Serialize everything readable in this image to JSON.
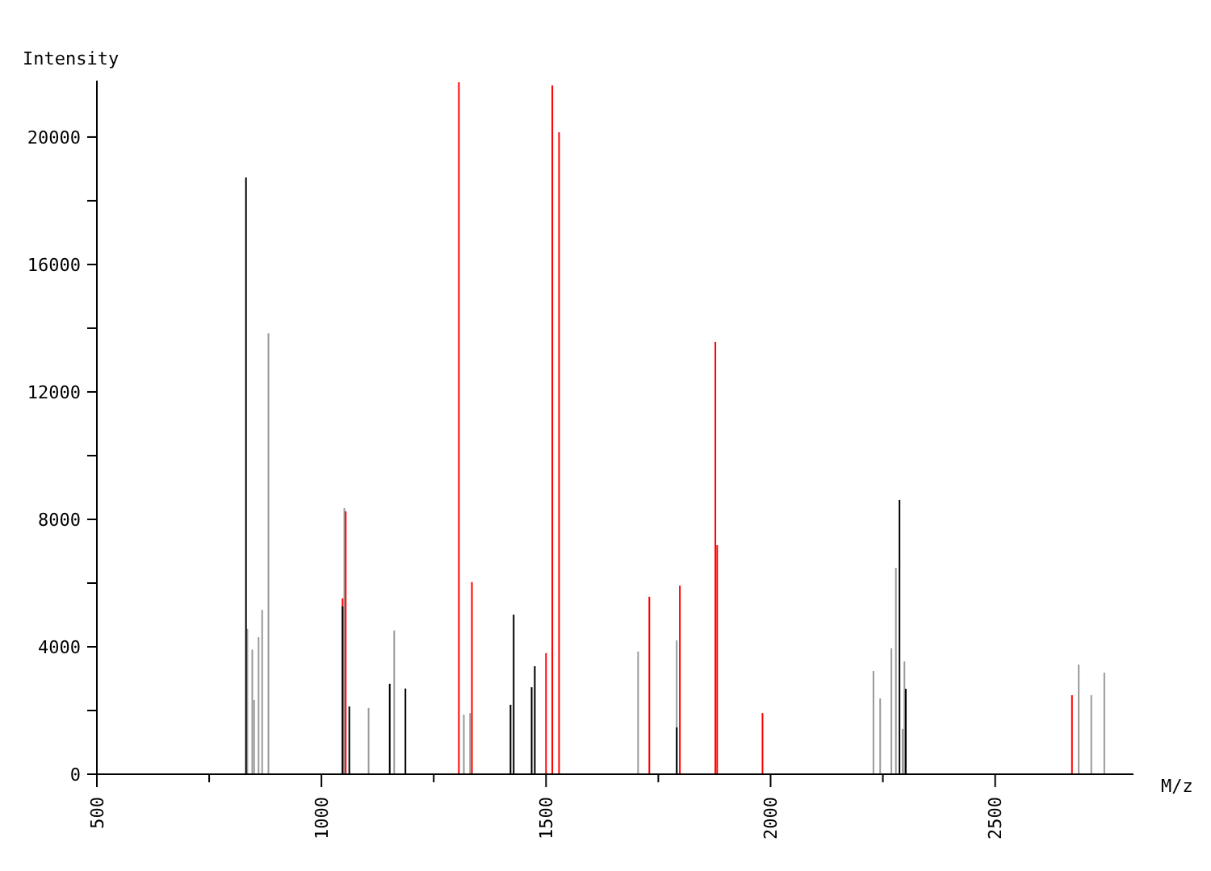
{
  "chart_data": {
    "type": "bar",
    "xlabel": "M/z",
    "ylabel": "Intensity",
    "xlim": [
      500,
      2808
    ],
    "ylim": [
      0,
      21770
    ],
    "xticks": [
      500,
      {
        "value": 750,
        "label": null
      },
      1000,
      {
        "value": 1250,
        "label": null
      },
      1500,
      {
        "value": 1750,
        "label": null
      },
      2000,
      {
        "value": 2250,
        "label": null
      },
      2500
    ],
    "yticks": [
      0,
      {
        "value": 2000,
        "label": null
      },
      4000,
      {
        "value": 6000,
        "label": null
      },
      8000,
      {
        "value": 10000,
        "label": null
      },
      12000,
      {
        "value": 14000,
        "label": null
      },
      16000,
      {
        "value": 18000,
        "label": null
      },
      20000
    ],
    "grid": false,
    "series": [
      {
        "color": "#999999",
        "x": [
          835,
          846,
          850,
          860,
          868,
          882,
          1051,
          1105,
          1162,
          1317,
          1331,
          1705,
          1791,
          2229,
          2244,
          2269,
          2279,
          2294,
          2298,
          2686,
          2714,
          2743
        ],
        "values": [
          4560,
          3910,
          2330,
          4300,
          5160,
          13840,
          8350,
          2080,
          4510,
          1870,
          1920,
          3850,
          4200,
          3240,
          2380,
          3950,
          6480,
          1420,
          3540,
          3440,
          2480,
          3190
        ]
      },
      {
        "color": "#ff0000",
        "x": [
          1047,
          1054,
          1306,
          1335,
          1500,
          1514,
          1529,
          1730,
          1798,
          1877,
          1881,
          1982,
          2671
        ],
        "values": [
          5520,
          8250,
          21720,
          6030,
          3800,
          21620,
          20150,
          5570,
          5920,
          13570,
          7190,
          1920,
          2480
        ]
      },
      {
        "color": "#000000",
        "x": [
          832,
          1047,
          1062,
          1152,
          1187,
          1421,
          1428,
          1468,
          1475,
          1791,
          2287,
          2301
        ],
        "values": [
          18730,
          5270,
          2130,
          2840,
          2690,
          2180,
          5010,
          2730,
          3390,
          1470,
          8610,
          2680
        ]
      }
    ]
  }
}
